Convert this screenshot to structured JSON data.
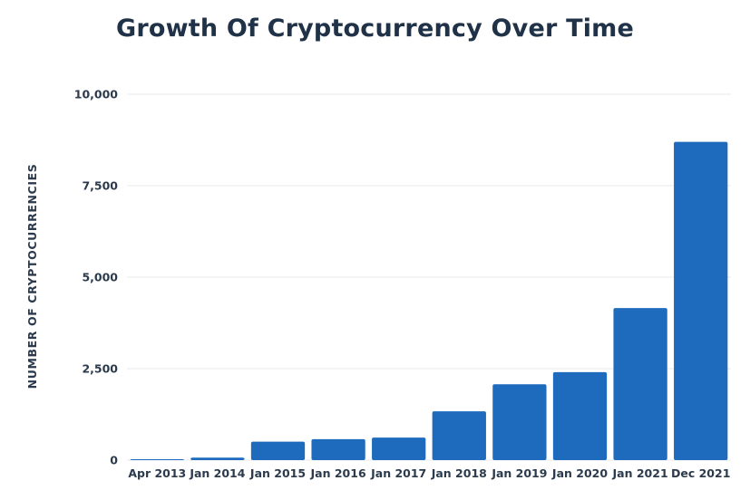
{
  "chart_data": {
    "type": "bar",
    "title": "Growth Of Cryptocurrency Over Time",
    "xlabel": "",
    "ylabel": "NUMBER OF CRYPTOCURRENCIES",
    "categories": [
      "Apr 2013",
      "Jan 2014",
      "Jan 2015",
      "Jan 2016",
      "Jan 2017",
      "Jan 2018",
      "Jan 2019",
      "Jan 2020",
      "Jan 2021",
      "Dec 2021"
    ],
    "values": [
      7,
      67,
      503,
      572,
      617,
      1335,
      2072,
      2403,
      4154,
      8697
    ],
    "ylim": [
      0,
      10000
    ],
    "yticks": [
      0,
      2500,
      5000,
      7500,
      10000
    ],
    "ytick_labels": [
      "0",
      "2,500",
      "5,000",
      "7,500",
      "10,000"
    ],
    "grid": true,
    "legend": "none",
    "bar_color": "#1e6bbd",
    "grid_color": "#e6e9ee"
  }
}
